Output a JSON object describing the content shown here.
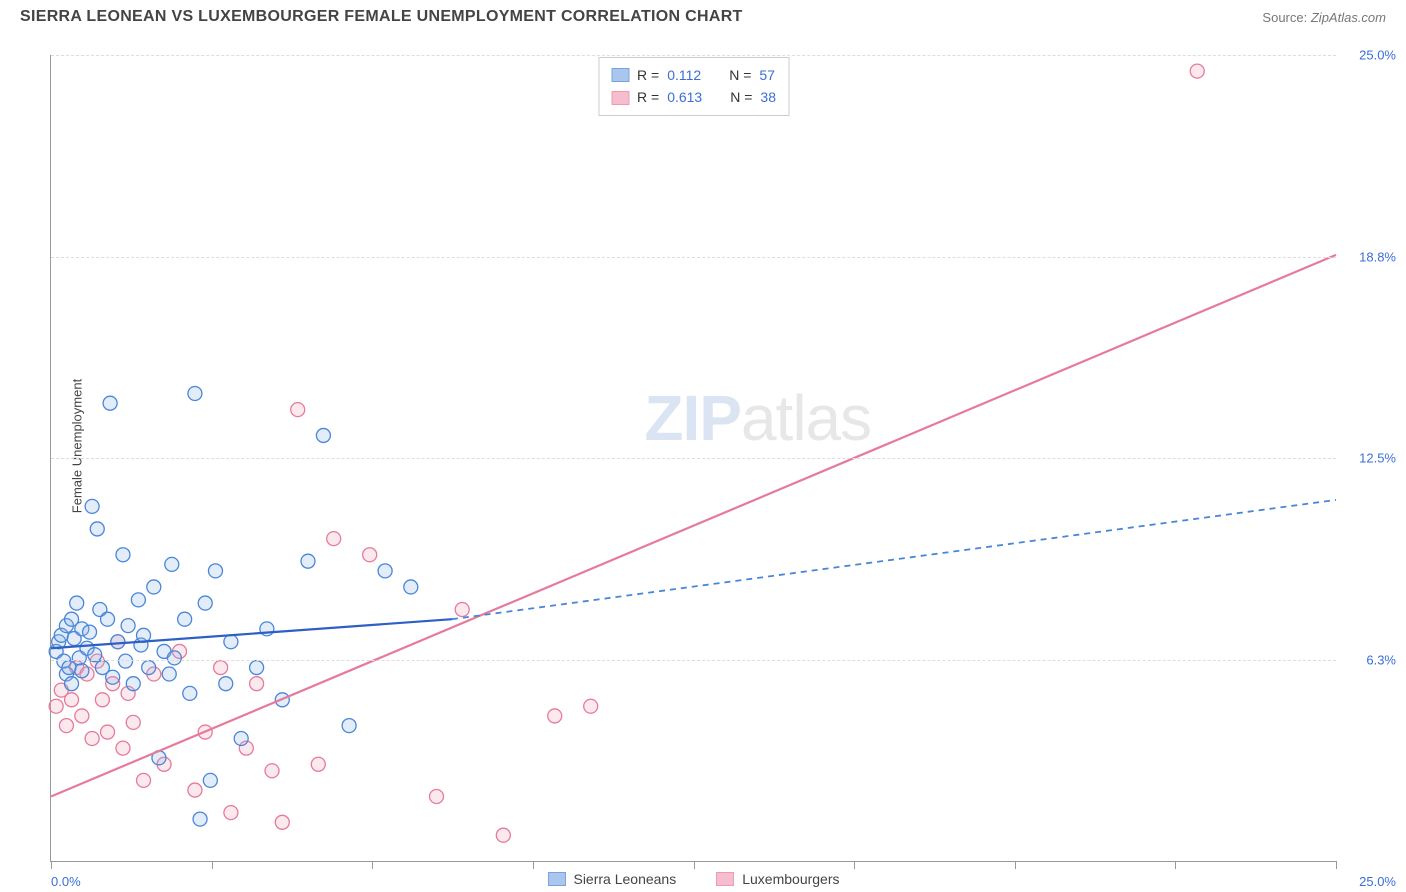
{
  "title": "SIERRA LEONEAN VS LUXEMBOURGER FEMALE UNEMPLOYMENT CORRELATION CHART",
  "source_label": "Source:",
  "source_value": "ZipAtlas.com",
  "y_axis_label": "Female Unemployment",
  "watermark_zip": "ZIP",
  "watermark_atlas": "atlas",
  "chart": {
    "type": "scatter",
    "xlim": [
      0,
      25
    ],
    "ylim": [
      0,
      25
    ],
    "x_tick_positions": [
      0,
      3.125,
      6.25,
      9.375,
      12.5,
      15.625,
      18.75,
      21.875,
      25
    ],
    "x_tick_labels_shown": {
      "first": "0.0%",
      "last": "25.0%"
    },
    "y_gridlines": [
      6.25,
      12.5,
      18.75,
      25
    ],
    "y_tick_labels": [
      "6.3%",
      "12.5%",
      "18.8%",
      "25.0%"
    ],
    "background_color": "#ffffff",
    "grid_color": "#dddddd",
    "axis_color": "#999999",
    "tick_label_color": "#3a6fd8",
    "marker_radius": 7,
    "marker_stroke_width": 1.3,
    "marker_fill_opacity": 0.25,
    "line_width_solid": 2.2,
    "line_width_dashed": 1.8,
    "dash_pattern": "6,5"
  },
  "series": {
    "a": {
      "label": "Sierra Leoneans",
      "color_stroke": "#4a86d8",
      "color_fill": "#8fb3e6",
      "R": "0.112",
      "N": "57",
      "trend": {
        "x1": 0,
        "y1": 6.6,
        "x2": 7.8,
        "y2": 7.5,
        "style": "solid"
      },
      "trend_ext": {
        "x1": 7.8,
        "y1": 7.5,
        "x2": 25,
        "y2": 11.2,
        "style": "dashed"
      },
      "points": [
        [
          0.1,
          6.5
        ],
        [
          0.15,
          6.8
        ],
        [
          0.2,
          7.0
        ],
        [
          0.25,
          6.2
        ],
        [
          0.3,
          5.8
        ],
        [
          0.3,
          7.3
        ],
        [
          0.35,
          6.0
        ],
        [
          0.4,
          7.5
        ],
        [
          0.4,
          5.5
        ],
        [
          0.45,
          6.9
        ],
        [
          0.5,
          8.0
        ],
        [
          0.55,
          6.3
        ],
        [
          0.6,
          7.2
        ],
        [
          0.6,
          5.9
        ],
        [
          0.7,
          6.6
        ],
        [
          0.75,
          7.1
        ],
        [
          0.8,
          11.0
        ],
        [
          0.85,
          6.4
        ],
        [
          0.9,
          10.3
        ],
        [
          0.95,
          7.8
        ],
        [
          1.0,
          6.0
        ],
        [
          1.1,
          7.5
        ],
        [
          1.15,
          14.2
        ],
        [
          1.2,
          5.7
        ],
        [
          1.3,
          6.8
        ],
        [
          1.4,
          9.5
        ],
        [
          1.45,
          6.2
        ],
        [
          1.5,
          7.3
        ],
        [
          1.6,
          5.5
        ],
        [
          1.7,
          8.1
        ],
        [
          1.75,
          6.7
        ],
        [
          1.8,
          7.0
        ],
        [
          1.9,
          6.0
        ],
        [
          2.0,
          8.5
        ],
        [
          2.1,
          3.2
        ],
        [
          2.2,
          6.5
        ],
        [
          2.3,
          5.8
        ],
        [
          2.35,
          9.2
        ],
        [
          2.4,
          6.3
        ],
        [
          2.6,
          7.5
        ],
        [
          2.7,
          5.2
        ],
        [
          2.8,
          14.5
        ],
        [
          2.9,
          1.3
        ],
        [
          3.0,
          8.0
        ],
        [
          3.1,
          2.5
        ],
        [
          3.2,
          9.0
        ],
        [
          3.4,
          5.5
        ],
        [
          3.5,
          6.8
        ],
        [
          3.7,
          3.8
        ],
        [
          4.0,
          6.0
        ],
        [
          4.2,
          7.2
        ],
        [
          4.5,
          5.0
        ],
        [
          5.0,
          9.3
        ],
        [
          5.3,
          13.2
        ],
        [
          5.8,
          4.2
        ],
        [
          6.5,
          9.0
        ],
        [
          7.0,
          8.5
        ]
      ]
    },
    "b": {
      "label": "Luxembourgers",
      "color_stroke": "#e67a9a",
      "color_fill": "#f2a8bd",
      "R": "0.613",
      "N": "38",
      "trend": {
        "x1": 0,
        "y1": 2.0,
        "x2": 25,
        "y2": 18.8,
        "style": "solid"
      },
      "points": [
        [
          0.1,
          4.8
        ],
        [
          0.2,
          5.3
        ],
        [
          0.3,
          4.2
        ],
        [
          0.4,
          5.0
        ],
        [
          0.5,
          6.0
        ],
        [
          0.6,
          4.5
        ],
        [
          0.7,
          5.8
        ],
        [
          0.8,
          3.8
        ],
        [
          0.9,
          6.2
        ],
        [
          1.0,
          5.0
        ],
        [
          1.1,
          4.0
        ],
        [
          1.2,
          5.5
        ],
        [
          1.3,
          6.8
        ],
        [
          1.4,
          3.5
        ],
        [
          1.5,
          5.2
        ],
        [
          1.6,
          4.3
        ],
        [
          1.8,
          2.5
        ],
        [
          2.0,
          5.8
        ],
        [
          2.2,
          3.0
        ],
        [
          2.5,
          6.5
        ],
        [
          2.8,
          2.2
        ],
        [
          3.0,
          4.0
        ],
        [
          3.3,
          6.0
        ],
        [
          3.5,
          1.5
        ],
        [
          3.8,
          3.5
        ],
        [
          4.0,
          5.5
        ],
        [
          4.3,
          2.8
        ],
        [
          4.5,
          1.2
        ],
        [
          4.8,
          14.0
        ],
        [
          5.2,
          3.0
        ],
        [
          5.5,
          10.0
        ],
        [
          6.2,
          9.5
        ],
        [
          7.5,
          2.0
        ],
        [
          8.0,
          7.8
        ],
        [
          8.8,
          0.8
        ],
        [
          9.8,
          4.5
        ],
        [
          10.5,
          4.8
        ],
        [
          22.3,
          24.5
        ]
      ]
    }
  },
  "legend_top": {
    "r_label": "R  =",
    "n_label": "N  ="
  }
}
